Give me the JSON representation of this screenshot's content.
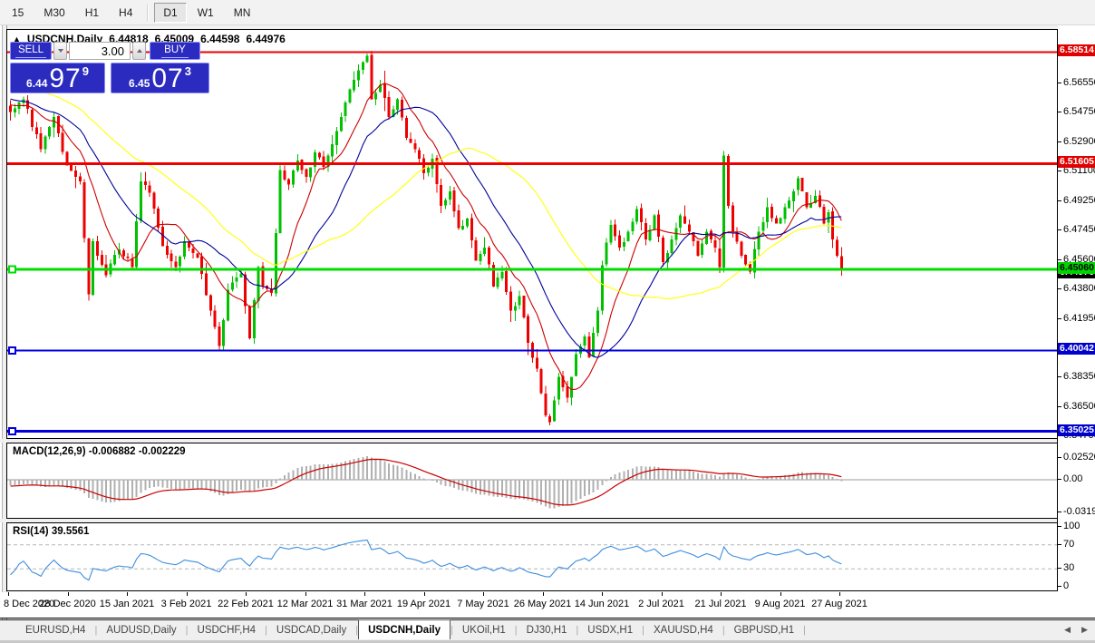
{
  "toolbar": {
    "timeframes": [
      "15",
      "M30",
      "H1",
      "H4",
      "D1",
      "W1",
      "MN"
    ],
    "active": "D1"
  },
  "chart": {
    "title": {
      "symbol": "USDCNH,Daily",
      "open": "6.44818",
      "high": "6.45009",
      "low": "6.44598",
      "close": "6.44976"
    },
    "price_axis_ticks": [
      "6.56550",
      "6.54750",
      "6.52900",
      "6.51100",
      "6.49250",
      "6.47450",
      "6.45600",
      "6.43800",
      "6.41950",
      "6.38350",
      "6.36500",
      "6.34700"
    ],
    "price_badges": [
      {
        "label": "6.58514",
        "price": 6.58514,
        "bg": "#e00000",
        "fg": "#ffffff"
      },
      {
        "label": "6.51605",
        "price": 6.51605,
        "bg": "#e00000",
        "fg": "#ffffff"
      },
      {
        "label": "6.45060",
        "price": 6.4506,
        "bg": "#00d400",
        "fg": "#000000"
      },
      {
        "label": "6.40042",
        "price": 6.40042,
        "bg": "#0000cc",
        "fg": "#ffffff"
      },
      {
        "label": "6.35025",
        "price": 6.35025,
        "bg": "#0000cc",
        "fg": "#ffffff"
      }
    ],
    "current_price_badge": {
      "label": "6.44976",
      "bg": "#000000",
      "fg": "#ffffff"
    }
  },
  "trade_panel": {
    "sell_label": "SELL",
    "buy_label": "BUY",
    "volume": "3.00",
    "sell_price": {
      "prefix": "6.44",
      "big": "97",
      "sup": "9"
    },
    "buy_price": {
      "prefix": "6.45",
      "big": "07",
      "sup": "3"
    }
  },
  "indicators": {
    "macd": {
      "label": "MACD(12,26,9)",
      "values": "-0.006882 -0.002229",
      "axis": [
        "0.025209",
        "0.00",
        "-0.03198"
      ]
    },
    "rsi": {
      "label": "RSI(14)",
      "value": "39.5561",
      "axis": [
        "100",
        "70",
        "30",
        "0"
      ]
    }
  },
  "date_axis": [
    "8 Dec 2020",
    "28 Dec 2020",
    "15 Jan 2021",
    "3 Feb 2021",
    "22 Feb 2021",
    "12 Mar 2021",
    "31 Mar 2021",
    "19 Apr 2021",
    "7 May 2021",
    "26 May 2021",
    "14 Jun 2021",
    "2 Jul 2021",
    "21 Jul 2021",
    "9 Aug 2021",
    "27 Aug 2021"
  ],
  "tabs": {
    "items": [
      "EURUSD,H4",
      "AUDUSD,Daily",
      "USDCHF,H4",
      "USDCAD,Daily",
      "USDCNH,Daily",
      "UKOil,H1",
      "DJ30,H1",
      "USDX,H1",
      "XAUUSD,H4",
      "GBPUSD,H1"
    ],
    "active_index": 4
  },
  "chart_data": {
    "type": "candlestick",
    "symbol": "USDCNH",
    "timeframe": "Daily",
    "visible_bars": 192,
    "y_range": [
      6.342,
      6.6
    ],
    "last_close": 6.44976,
    "close_pivots": [
      [
        0,
        6.548
      ],
      [
        3,
        6.556
      ],
      [
        7,
        6.525
      ],
      [
        10,
        6.545
      ],
      [
        13,
        6.515
      ],
      [
        16,
        6.505
      ],
      [
        18,
        6.435
      ],
      [
        19,
        6.468
      ],
      [
        22,
        6.447
      ],
      [
        25,
        6.463
      ],
      [
        28,
        6.452
      ],
      [
        30,
        6.505
      ],
      [
        32,
        6.498
      ],
      [
        35,
        6.465
      ],
      [
        38,
        6.452
      ],
      [
        40,
        6.468
      ],
      [
        43,
        6.458
      ],
      [
        46,
        6.425
      ],
      [
        48,
        6.403
      ],
      [
        50,
        6.438
      ],
      [
        53,
        6.448
      ],
      [
        55,
        6.408
      ],
      [
        57,
        6.452
      ],
      [
        58,
        6.44
      ],
      [
        60,
        6.436
      ],
      [
        62,
        6.512
      ],
      [
        64,
        6.503
      ],
      [
        66,
        6.518
      ],
      [
        68,
        6.508
      ],
      [
        70,
        6.523
      ],
      [
        72,
        6.514
      ],
      [
        74,
        6.528
      ],
      [
        76,
        6.545
      ],
      [
        78,
        6.562
      ],
      [
        80,
        6.574
      ],
      [
        82,
        6.583
      ],
      [
        83,
        6.556
      ],
      [
        85,
        6.565
      ],
      [
        87,
        6.545
      ],
      [
        89,
        6.556
      ],
      [
        91,
        6.532
      ],
      [
        93,
        6.525
      ],
      [
        95,
        6.51
      ],
      [
        97,
        6.519
      ],
      [
        99,
        6.49
      ],
      [
        101,
        6.499
      ],
      [
        103,
        6.476
      ],
      [
        105,
        6.482
      ],
      [
        107,
        6.456
      ],
      [
        109,
        6.464
      ],
      [
        111,
        6.44
      ],
      [
        113,
        6.449
      ],
      [
        115,
        6.425
      ],
      [
        117,
        6.434
      ],
      [
        119,
        6.405
      ],
      [
        121,
        6.389
      ],
      [
        123,
        6.36
      ],
      [
        124,
        6.356
      ],
      [
        126,
        6.384
      ],
      [
        128,
        6.371
      ],
      [
        130,
        6.398
      ],
      [
        132,
        6.409
      ],
      [
        133,
        6.396
      ],
      [
        135,
        6.425
      ],
      [
        136,
        6.453
      ],
      [
        138,
        6.478
      ],
      [
        140,
        6.464
      ],
      [
        142,
        6.474
      ],
      [
        144,
        6.488
      ],
      [
        146,
        6.469
      ],
      [
        148,
        6.484
      ],
      [
        150,
        6.455
      ],
      [
        152,
        6.469
      ],
      [
        154,
        6.484
      ],
      [
        156,
        6.474
      ],
      [
        158,
        6.459
      ],
      [
        160,
        6.474
      ],
      [
        162,
        6.464
      ],
      [
        163,
        6.452
      ],
      [
        164,
        6.521
      ],
      [
        165,
        6.49
      ],
      [
        166,
        6.474
      ],
      [
        168,
        6.459
      ],
      [
        170,
        6.449
      ],
      [
        172,
        6.474
      ],
      [
        174,
        6.489
      ],
      [
        176,
        6.479
      ],
      [
        178,
        6.489
      ],
      [
        180,
        6.499
      ],
      [
        181,
        6.507
      ],
      [
        183,
        6.489
      ],
      [
        185,
        6.496
      ],
      [
        187,
        6.479
      ],
      [
        188,
        6.486
      ],
      [
        189,
        6.469
      ],
      [
        190,
        6.459
      ],
      [
        191,
        6.44976
      ]
    ],
    "hlines": [
      {
        "price": 6.58514,
        "color": "#ee0000",
        "width": 2
      },
      {
        "price": 6.51605,
        "color": "#ee0000",
        "width": 3
      },
      {
        "price": 6.4506,
        "color": "#00dd00",
        "width": 3,
        "handle": true
      },
      {
        "price": 6.40042,
        "color": "#0000dd",
        "width": 2,
        "handle": true
      },
      {
        "price": 6.35025,
        "color": "#0000dd",
        "width": 3,
        "handle": true
      }
    ],
    "moving_averages": [
      {
        "period": 10,
        "color": "#cc0000"
      },
      {
        "period": 21,
        "color": "#000099"
      },
      {
        "period": 45,
        "color": "#ffff00"
      }
    ],
    "colors": {
      "bull": "#00c000",
      "bear": "#ee0000",
      "macd_hist": "#b0b0b0",
      "macd_signal": "#cc0000",
      "rsi_line": "#3e8ede"
    }
  }
}
